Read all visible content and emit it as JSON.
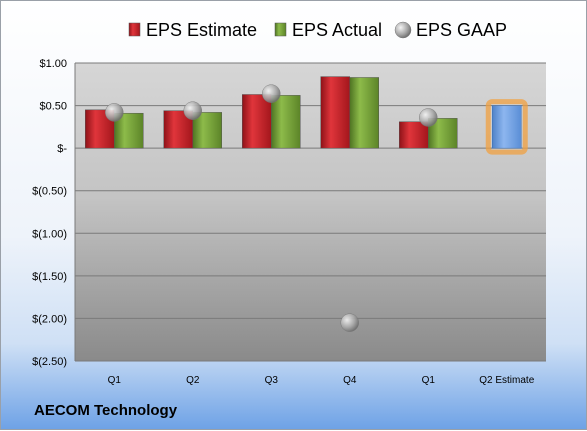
{
  "chart_data": {
    "type": "bar",
    "categories": [
      "Q1",
      "Q2",
      "Q3",
      "Q4",
      "Q1",
      "Q2 Estimate"
    ],
    "series": [
      {
        "name": "EPS Estimate",
        "type": "bar",
        "color": "#c8222a",
        "values": [
          0.45,
          0.44,
          0.63,
          0.84,
          0.31,
          null
        ]
      },
      {
        "name": "EPS Actual",
        "type": "bar",
        "color": "#6f9a32",
        "values": [
          0.41,
          0.42,
          0.62,
          0.83,
          0.35,
          null
        ]
      },
      {
        "name": "EPS GAAP",
        "type": "marker",
        "color": "#b0b0b0",
        "values": [
          0.42,
          0.44,
          0.64,
          -2.05,
          0.36,
          null
        ]
      },
      {
        "name": "Q2 Estimate",
        "type": "bar",
        "color": "#6e9ee0",
        "highlight": "#f0a040",
        "values": [
          null,
          null,
          null,
          null,
          null,
          0.5
        ]
      }
    ],
    "yticks": [
      "$1.00",
      "$0.50",
      "$-",
      "$(0.50)",
      "$(1.00)",
      "$(1.50)",
      "$(2.00)",
      "$(2.50)"
    ],
    "ytick_values": [
      1.0,
      0.5,
      0,
      -0.5,
      -1.0,
      -1.5,
      -2.0,
      -2.5
    ],
    "ylim": [
      -2.5,
      1.0
    ],
    "grid": true,
    "legend_position": "top",
    "title": "",
    "xlabel": "",
    "ylabel": ""
  },
  "company": "AECOM Technology"
}
